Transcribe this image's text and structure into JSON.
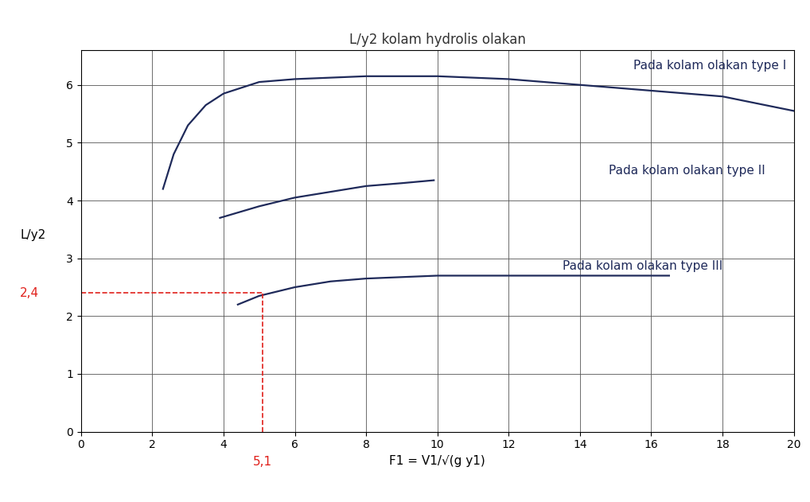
{
  "chart_data": {
    "type": "line",
    "title": "L/y2 kolam hydrolis olakan",
    "x_label": "F1 = V1/√(g y1)",
    "y_label": "L/y2",
    "xlim": [
      0,
      20
    ],
    "xticks": [
      0,
      2,
      4,
      6,
      8,
      10,
      12,
      14,
      16,
      18,
      20
    ],
    "ylim": [
      0,
      6.6
    ],
    "yticks": [
      0,
      1,
      2,
      3,
      4,
      5,
      6
    ],
    "grid": true,
    "series": [
      {
        "name": "Pada kolam olakan type I",
        "color": "#1f2a5a",
        "x": [
          2.3,
          2.6,
          3.0,
          3.5,
          4.0,
          5.0,
          6.0,
          8.0,
          10.0,
          12.0,
          14.0,
          16.0,
          18.0,
          20.0
        ],
        "values": [
          4.2,
          4.8,
          5.3,
          5.65,
          5.85,
          6.05,
          6.1,
          6.15,
          6.15,
          6.1,
          6.0,
          5.9,
          5.8,
          5.55
        ]
      },
      {
        "name": "Pada kolam olakan type II",
        "color": "#1f2a5a",
        "x": [
          3.9,
          5.0,
          6.0,
          7.0,
          8.0,
          9.0,
          9.9
        ],
        "values": [
          3.7,
          3.9,
          4.05,
          4.15,
          4.25,
          4.3,
          4.35
        ]
      },
      {
        "name": "Pada kolam olakan type III",
        "color": "#1f2a5a",
        "x": [
          4.4,
          5.0,
          6.0,
          7.0,
          8.0,
          10.0,
          12.0,
          14.0,
          16.5
        ],
        "values": [
          2.2,
          2.35,
          2.5,
          2.6,
          2.65,
          2.7,
          2.7,
          2.7,
          2.7
        ]
      }
    ],
    "annotations": [
      {
        "text": "2,4",
        "value": 2.4,
        "axis": "y",
        "color": "#e0201b"
      },
      {
        "text": "5,1",
        "value": 5.1,
        "axis": "x",
        "color": "#e0201b"
      }
    ]
  }
}
